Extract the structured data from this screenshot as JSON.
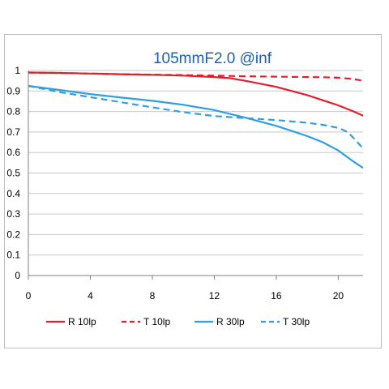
{
  "chart_data": {
    "type": "line",
    "title": "105mmF2.0    @inf",
    "xlabel": "",
    "ylabel": "",
    "xlim": [
      0,
      21.6
    ],
    "ylim": [
      0,
      1
    ],
    "x_ticks": [
      0,
      4,
      8,
      12,
      16,
      20
    ],
    "y_ticks": [
      0,
      0.1,
      0.2,
      0.3,
      0.4,
      0.5,
      0.6,
      0.7,
      0.8,
      0.9,
      1
    ],
    "grid": "horizontal",
    "legend_position": "bottom",
    "series": [
      {
        "name": "R 10lp",
        "color": "#e0202a",
        "dash": "solid",
        "x": [
          0,
          2,
          4,
          6,
          8,
          10,
          12,
          13,
          14,
          15,
          16,
          17,
          18,
          19,
          20,
          21,
          21.6
        ],
        "y": [
          0.99,
          0.988,
          0.985,
          0.982,
          0.979,
          0.975,
          0.968,
          0.963,
          0.95,
          0.935,
          0.92,
          0.9,
          0.88,
          0.855,
          0.83,
          0.8,
          0.78
        ]
      },
      {
        "name": "T 10lp",
        "color": "#e0202a",
        "dash": "dashed",
        "x": [
          0,
          2,
          4,
          6,
          8,
          10,
          12,
          14,
          16,
          18,
          19,
          20,
          21,
          21.6
        ],
        "y": [
          0.99,
          0.988,
          0.985,
          0.982,
          0.98,
          0.978,
          0.975,
          0.972,
          0.97,
          0.968,
          0.967,
          0.965,
          0.958,
          0.95
        ]
      },
      {
        "name": "R 30lp",
        "color": "#2f9fe0",
        "dash": "solid",
        "x": [
          0,
          2,
          4,
          6,
          8,
          10,
          12,
          14,
          16,
          17,
          18,
          19,
          20,
          21,
          21.6
        ],
        "y": [
          0.925,
          0.905,
          0.885,
          0.868,
          0.852,
          0.833,
          0.807,
          0.77,
          0.73,
          0.705,
          0.68,
          0.65,
          0.61,
          0.555,
          0.525
        ]
      },
      {
        "name": "T 30lp",
        "color": "#2f9fe0",
        "dash": "dashed",
        "x": [
          0,
          2,
          4,
          6,
          8,
          10,
          12,
          14,
          16,
          18,
          19,
          20,
          20.6,
          21,
          21.6
        ],
        "y": [
          0.925,
          0.895,
          0.87,
          0.845,
          0.82,
          0.797,
          0.778,
          0.768,
          0.758,
          0.745,
          0.735,
          0.72,
          0.7,
          0.67,
          0.62
        ]
      }
    ]
  }
}
